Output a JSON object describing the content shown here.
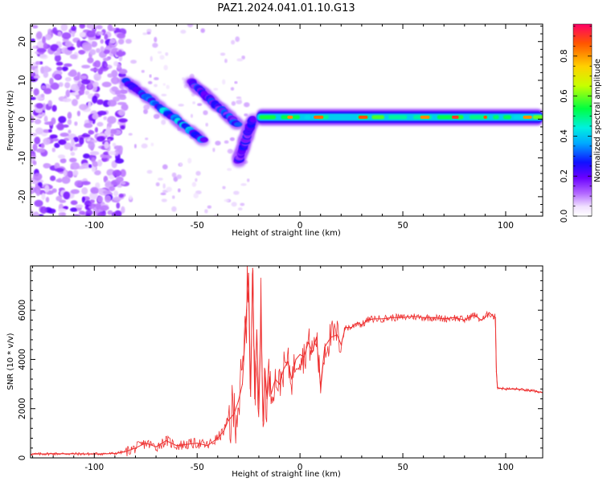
{
  "title": "PAZ1.2024.041.01.10.G13",
  "chart_data": [
    {
      "type": "heatmap",
      "xlabel": "Height of straight line (km)",
      "ylabel": "Frequency (Hz)",
      "xlim": [
        -131,
        118
      ],
      "ylim": [
        -25,
        24.5
      ],
      "xticks": [
        -100,
        -50,
        0,
        50,
        100
      ],
      "yticks": [
        -20,
        -10,
        0,
        10,
        20
      ],
      "xtick_labels": [
        "-100",
        "-50",
        "0",
        "50",
        "100"
      ],
      "ytick_labels": [
        "-20",
        "-10",
        "0",
        "10",
        "20"
      ],
      "colorbar": {
        "label": "Normalized spectral amplitude",
        "range": [
          0,
          0.96
        ],
        "ticks": [
          0.0,
          0.2,
          0.4,
          0.6,
          0.8
        ],
        "tick_labels": [
          "0.0",
          "0.2",
          "0.4",
          "0.6",
          "0.8"
        ]
      },
      "features": [
        {
          "kind": "noise-field",
          "x_range": [
            -131,
            -85
          ],
          "y_range": [
            -25,
            24.5
          ],
          "amplitude": 0.15
        },
        {
          "kind": "streak",
          "from": [
            -85,
            10
          ],
          "to": [
            -47,
            -5.5
          ],
          "amplitude": 0.45
        },
        {
          "kind": "streak",
          "from": [
            -53,
            9.5
          ],
          "to": [
            -30,
            -1.5
          ],
          "amplitude": 0.35
        },
        {
          "kind": "streak",
          "from": [
            -30,
            -11
          ],
          "to": [
            -23,
            0
          ],
          "amplitude": 0.3
        },
        {
          "kind": "band",
          "x_range": [
            -21,
            118
          ],
          "y_center": 0.5,
          "amplitude": 0.5
        }
      ]
    },
    {
      "type": "line",
      "xlabel": "Height of straight line (km)",
      "ylabel": "SNR (10 * v/v)",
      "xlim": [
        -131,
        118
      ],
      "ylim": [
        0,
        7800
      ],
      "xticks": [
        -100,
        -50,
        0,
        50,
        100
      ],
      "yticks": [
        0,
        2000,
        4000,
        6000
      ],
      "xtick_labels": [
        "-100",
        "-50",
        "0",
        "50",
        "100"
      ],
      "ytick_labels": [
        "0",
        "2000",
        "4000",
        "6000"
      ],
      "color": "#ee3030",
      "series": [
        {
          "x": [
            -131,
            -120,
            -100,
            -90,
            -85,
            -80,
            -75,
            -70,
            -65,
            -60,
            -55,
            -50,
            -45,
            -40,
            -37,
            -35,
            -32,
            -30,
            -28,
            -26,
            -25,
            -24,
            -23,
            -22,
            -21,
            -20,
            -19,
            -18,
            -17,
            -16,
            -15,
            -14,
            -12,
            -10,
            -8,
            -6,
            -4,
            -2,
            0,
            2,
            4,
            6,
            8,
            10,
            12,
            15,
            18,
            20,
            22,
            25,
            28,
            30,
            33,
            36,
            40,
            45,
            50,
            55,
            60,
            65,
            70,
            75,
            80,
            83,
            85,
            88,
            90,
            92,
            94,
            95,
            95.5,
            96,
            100,
            105,
            110,
            115,
            118
          ],
          "y": [
            150,
            170,
            160,
            180,
            250,
            400,
            600,
            450,
            700,
            500,
            550,
            600,
            500,
            800,
            1100,
            1500,
            1800,
            2300,
            3000,
            6000,
            7500,
            2500,
            7700,
            2400,
            5200,
            2000,
            6000,
            1500,
            3500,
            2400,
            3300,
            2600,
            3200,
            3000,
            3600,
            3900,
            3200,
            4000,
            4200,
            4100,
            4700,
            4300,
            4900,
            2900,
            4500,
            4900,
            5000,
            4600,
            5300,
            5300,
            5500,
            5400,
            5600,
            5650,
            5650,
            5700,
            5700,
            5750,
            5700,
            5700,
            5650,
            5700,
            5600,
            5750,
            5800,
            5600,
            5700,
            5900,
            5750,
            5700,
            3500,
            2850,
            2800,
            2800,
            2750,
            2700,
            2650
          ]
        }
      ]
    }
  ]
}
